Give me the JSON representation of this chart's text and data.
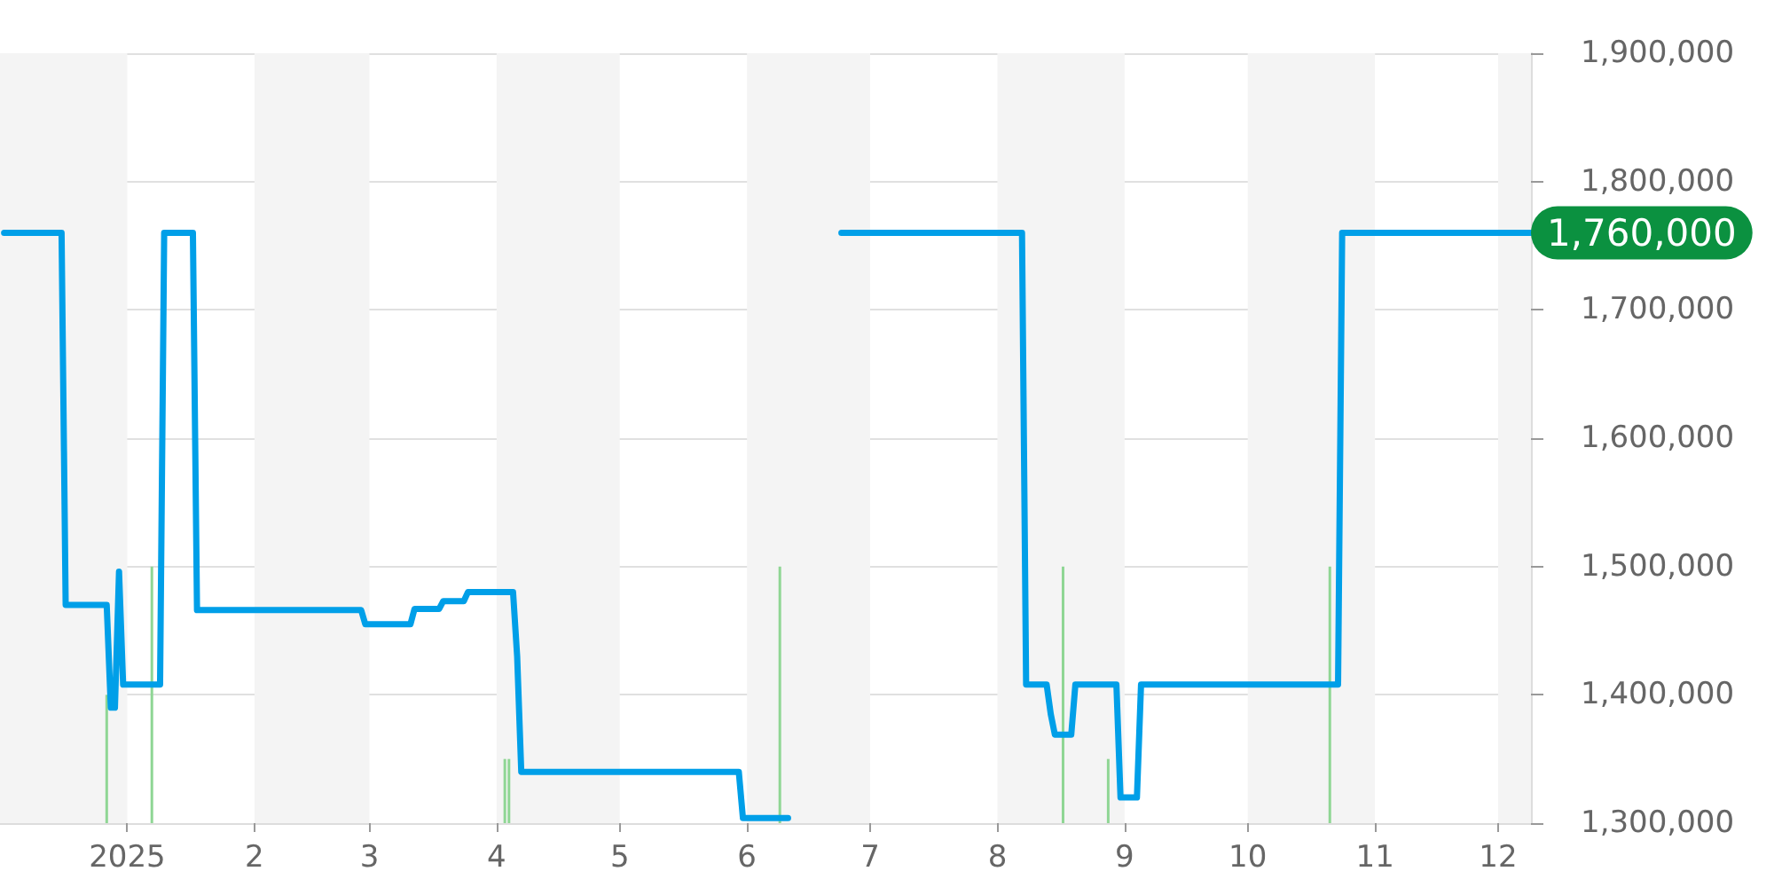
{
  "chart_data": {
    "type": "line",
    "series": [
      {
        "type": "bar",
        "color": "#8fd694",
        "x": [
          "2024-12-27",
          "2025-01-07",
          "2025-04-03",
          "2025-04-04",
          "2025-06-09",
          "2025-08-17",
          "2025-08-28",
          "2025-10-21"
        ],
        "values": [
          1400000,
          1500000,
          1350000,
          1350000,
          1500000,
          1500000,
          1350000,
          1500000
        ]
      },
      {
        "color": "#009fe8",
        "x": [
          "2024-12-02",
          "2024-12-16",
          "2024-12-17",
          "2024-12-27",
          "2024-12-28",
          "2024-12-29",
          "2024-12-30",
          "2024-12-31",
          "2025-01-09",
          "2025-01-10",
          "2025-01-17",
          "2025-01-18",
          "2025-02-27",
          "2025-02-28",
          "2025-03-11",
          "2025-03-12",
          "2025-03-18",
          "2025-03-19",
          "2025-03-24",
          "2025-03-25",
          "2025-04-05",
          "2025-04-06",
          "2025-04-07",
          "2025-05-30",
          "2025-05-31",
          "2025-06-11",
          "2025-06-17",
          "2025-06-24",
          "2025-08-07",
          "2025-08-08",
          "2025-08-13",
          "2025-08-14",
          "2025-08-15",
          "2025-08-19",
          "2025-08-20",
          "2025-08-30",
          "2025-08-31",
          "2025-09-04",
          "2025-09-05",
          "2025-10-23",
          "2025-10-24",
          "2025-12-09"
        ],
        "values": [
          1760000,
          1760000,
          1470000,
          1470000,
          1390000,
          1390000,
          1496000,
          1408000,
          1408000,
          1760000,
          1760000,
          1466000,
          1466000,
          1455000,
          1455000,
          1467000,
          1467000,
          1473000,
          1473000,
          1480000,
          1480000,
          1430000,
          1340000,
          1340000,
          1304000,
          1304000,
          null,
          1760000,
          1760000,
          1408000,
          1408000,
          1385000,
          1369000,
          1369000,
          1408000,
          1408000,
          1320000,
          1320000,
          1408000,
          1408000,
          1760000,
          1760000
        ],
        "value_labels": [
          null,
          null,
          null,
          null,
          null,
          null,
          null,
          null,
          null,
          null,
          null,
          null,
          null,
          null,
          null,
          null,
          null,
          null,
          null,
          null,
          null,
          null,
          null,
          null,
          null,
          null,
          null,
          null,
          null,
          null,
          null,
          null,
          null,
          null,
          null,
          null,
          null,
          null,
          null,
          null,
          null,
          "1,760,000"
        ]
      }
    ],
    "xlim": [
      "2024-12-01",
      "2025-12-09"
    ],
    "xticks": [
      {
        "value": "2025-01-01",
        "label": "2025"
      },
      {
        "value": "2025-02-01",
        "label": "2"
      },
      {
        "value": "2025-03-01",
        "label": "3"
      },
      {
        "value": "2025-04-01",
        "label": "4"
      },
      {
        "value": "2025-05-01",
        "label": "5"
      },
      {
        "value": "2025-06-01",
        "label": "6"
      },
      {
        "value": "2025-07-01",
        "label": "7"
      },
      {
        "value": "2025-08-01",
        "label": "8"
      },
      {
        "value": "2025-09-01",
        "label": "9"
      },
      {
        "value": "2025-10-01",
        "label": "10"
      },
      {
        "value": "2025-11-01",
        "label": "11"
      },
      {
        "value": "2025-12-01",
        "label": "12"
      }
    ],
    "ylim": [
      1300000,
      1900000
    ],
    "yticks": [
      {
        "value": 1300000,
        "label": "1,300,000"
      },
      {
        "value": 1400000,
        "label": "1,400,000"
      },
      {
        "value": 1500000,
        "label": "1,500,000"
      },
      {
        "value": 1600000,
        "label": "1,600,000"
      },
      {
        "value": 1700000,
        "label": "1,700,000"
      },
      {
        "value": 1800000,
        "label": "1,800,000"
      },
      {
        "value": 1900000,
        "label": "1,900,000"
      }
    ],
    "grid": "y",
    "line_style": "solid",
    "bands": [
      {
        "axis": "x",
        "from": "2024-12-01",
        "to": "2025-01-01",
        "color": "#f4f4f4"
      },
      {
        "axis": "x",
        "from": "2025-02-01",
        "to": "2025-03-01",
        "color": "#f4f4f4"
      },
      {
        "axis": "x",
        "from": "2025-04-01",
        "to": "2025-05-01",
        "color": "#f4f4f4"
      },
      {
        "axis": "x",
        "from": "2025-06-01",
        "to": "2025-07-01",
        "color": "#f4f4f4"
      },
      {
        "axis": "x",
        "from": "2025-08-01",
        "to": "2025-09-01",
        "color": "#f4f4f4"
      },
      {
        "axis": "x",
        "from": "2025-10-01",
        "to": "2025-11-01",
        "color": "#f4f4f4"
      },
      {
        "axis": "x",
        "from": "2025-12-01",
        "to": "2025-12-09",
        "color": "#f4f4f4"
      }
    ]
  }
}
